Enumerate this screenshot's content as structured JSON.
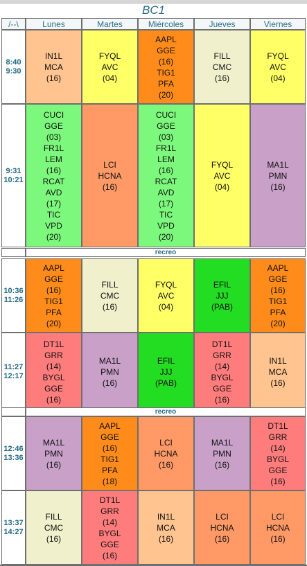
{
  "title": "BC1",
  "corner": "/--\\",
  "days": [
    "Lunes",
    "Martes",
    "Miércoles",
    "Jueves",
    "Viernes"
  ],
  "colors": {
    "orange": "#ff8c1a",
    "peach": "#ffc48f",
    "yellow": "#ffff66",
    "green": "#7cf97c",
    "bright_green": "#22dd22",
    "salmon": "#ff9966",
    "purple": "#c8a0c8",
    "cream": "#f0f0cc",
    "pink": "#ff7c7c",
    "header_text": "#2a6f86"
  },
  "recess_label": "recreo",
  "periods": [
    {
      "start": "8:40",
      "end": "9:30",
      "cells": [
        {
          "lines": [
            "IN1L",
            "MCA",
            "(16)"
          ],
          "color": "peach"
        },
        {
          "lines": [
            "FYQL",
            "AVC",
            "(04)"
          ],
          "color": "yellow"
        },
        {
          "lines": [
            "AAPL",
            "GGE",
            "(16)",
            "TIG1",
            "PFA",
            "(20)"
          ],
          "color": "orange"
        },
        {
          "lines": [
            "FILL",
            "CMC",
            "(16)"
          ],
          "color": "cream"
        },
        {
          "lines": [
            "FYQL",
            "AVC",
            "(04)"
          ],
          "color": "yellow"
        }
      ]
    },
    {
      "start": "9:31",
      "end": "10:21",
      "cells": [
        {
          "lines": [
            "CUCI",
            "GGE",
            "(03)",
            "FR1L",
            "LEM",
            "(16)",
            "RCAT",
            "AVD",
            "(17)",
            "TIC",
            "VPD",
            "(20)"
          ],
          "color": "green"
        },
        {
          "lines": [
            "LCI",
            "HCNA",
            "(16)"
          ],
          "color": "salmon"
        },
        {
          "lines": [
            "CUCI",
            "GGE",
            "(03)",
            "FR1L",
            "LEM",
            "(16)",
            "RCAT",
            "AVD",
            "(17)",
            "TIC",
            "VPD",
            "(20)"
          ],
          "color": "green"
        },
        {
          "lines": [
            "FYQL",
            "AVC",
            "(04)"
          ],
          "color": "yellow"
        },
        {
          "lines": [
            "MA1L",
            "PMN",
            "(16)"
          ],
          "color": "purple"
        }
      ]
    },
    {
      "start": "10:36",
      "end": "11:26",
      "cells": [
        {
          "lines": [
            "AAPL",
            "GGE",
            "(16)",
            "TIG1",
            "PFA",
            "(20)"
          ],
          "color": "orange"
        },
        {
          "lines": [
            "FILL",
            "CMC",
            "(16)"
          ],
          "color": "cream"
        },
        {
          "lines": [
            "FYQL",
            "AVC",
            "(04)"
          ],
          "color": "yellow"
        },
        {
          "lines": [
            "EFIL",
            "JJJ",
            "(PAB)"
          ],
          "color": "bright_green"
        },
        {
          "lines": [
            "AAPL",
            "GGE",
            "(16)",
            "TIG1",
            "PFA",
            "(20)"
          ],
          "color": "orange"
        }
      ]
    },
    {
      "start": "11:27",
      "end": "12:17",
      "cells": [
        {
          "lines": [
            "DT1L",
            "GRR",
            "(14)",
            "BYGL",
            "GGE",
            "(16)"
          ],
          "color": "pink"
        },
        {
          "lines": [
            "MA1L",
            "PMN",
            "(16)"
          ],
          "color": "purple"
        },
        {
          "lines": [
            "EFIL",
            "JJJ",
            "(PAB)"
          ],
          "color": "bright_green"
        },
        {
          "lines": [
            "DT1L",
            "GRR",
            "(14)",
            "BYGL",
            "GGE",
            "(16)"
          ],
          "color": "pink"
        },
        {
          "lines": [
            "IN1L",
            "MCA",
            "(16)"
          ],
          "color": "peach"
        }
      ]
    },
    {
      "start": "12:46",
      "end": "13:36",
      "cells": [
        {
          "lines": [
            "MA1L",
            "PMN",
            "(16)"
          ],
          "color": "purple"
        },
        {
          "lines": [
            "AAPL",
            "GGE",
            "(16)",
            "TIG1",
            "PFA",
            "(18)"
          ],
          "color": "orange"
        },
        {
          "lines": [
            "LCI",
            "HCNA",
            "(16)"
          ],
          "color": "salmon"
        },
        {
          "lines": [
            "MA1L",
            "PMN",
            "(16)"
          ],
          "color": "purple"
        },
        {
          "lines": [
            "DT1L",
            "GRR",
            "(14)",
            "BYGL",
            "GGE",
            "(16)"
          ],
          "color": "pink"
        }
      ]
    },
    {
      "start": "13:37",
      "end": "14:27",
      "cells": [
        {
          "lines": [
            "FILL",
            "CMC",
            "(16)"
          ],
          "color": "cream"
        },
        {
          "lines": [
            "DT1L",
            "GRR",
            "(14)",
            "BYGL",
            "GGE",
            "(16)"
          ],
          "color": "pink"
        },
        {
          "lines": [
            "IN1L",
            "MCA",
            "(16)"
          ],
          "color": "peach"
        },
        {
          "lines": [
            "LCI",
            "HCNA",
            "(16)"
          ],
          "color": "salmon"
        },
        {
          "lines": [
            "LCI",
            "HCNA",
            "(16)"
          ],
          "color": "salmon"
        }
      ]
    }
  ]
}
